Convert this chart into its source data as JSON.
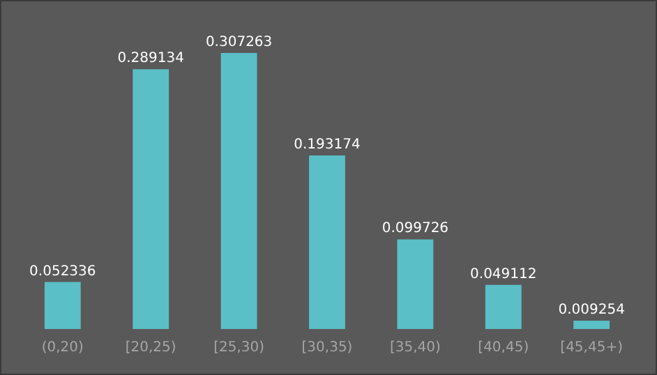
{
  "chart_data": {
    "type": "bar",
    "categories": [
      "(0,20)",
      "[20,25)",
      "[25,30)",
      "[30,35)",
      "[35,40)",
      "[40,45)",
      "[45,45+)"
    ],
    "values": [
      0.052336,
      0.289134,
      0.307263,
      0.193174,
      0.099726,
      0.049112,
      0.009254
    ],
    "color": "#5bbfc7",
    "data_labels": true
  }
}
